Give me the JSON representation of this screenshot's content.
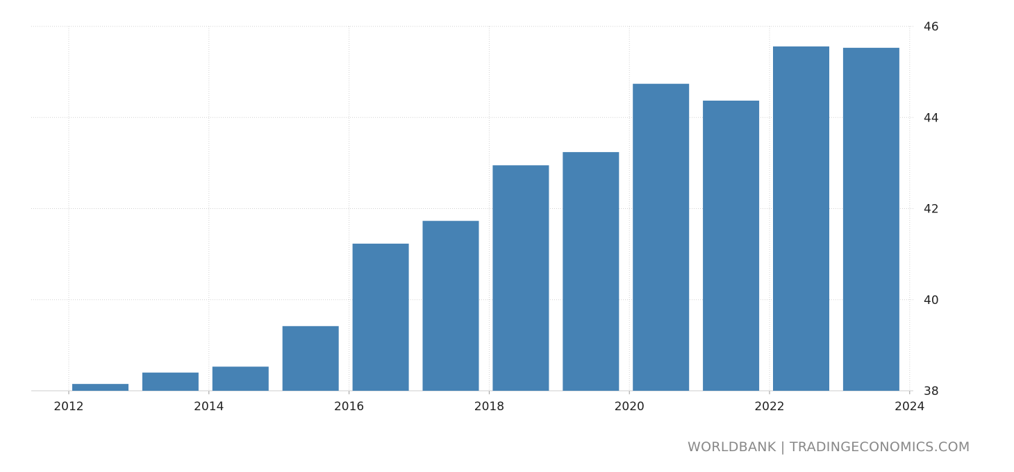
{
  "chart_data": {
    "type": "bar",
    "categories": [
      "2012",
      "2013",
      "2014",
      "2015",
      "2016",
      "2017",
      "2018",
      "2019",
      "2020",
      "2021",
      "2022",
      "2023"
    ],
    "values": [
      38.15,
      38.4,
      38.53,
      39.42,
      41.23,
      41.73,
      42.95,
      43.24,
      44.74,
      44.37,
      45.56,
      45.53
    ],
    "x_ticks": [
      "2012",
      "2014",
      "2016",
      "2018",
      "2020",
      "2022",
      "2024"
    ],
    "y_ticks": [
      "38",
      "40",
      "42",
      "44",
      "46"
    ],
    "ylim": [
      38,
      46
    ],
    "y_axis_position": "right",
    "grid": true,
    "bar_color": "#4682b4",
    "title": "",
    "xlabel": "",
    "ylabel": ""
  },
  "source": "WORLDBANK | TRADINGECONOMICS.COM"
}
